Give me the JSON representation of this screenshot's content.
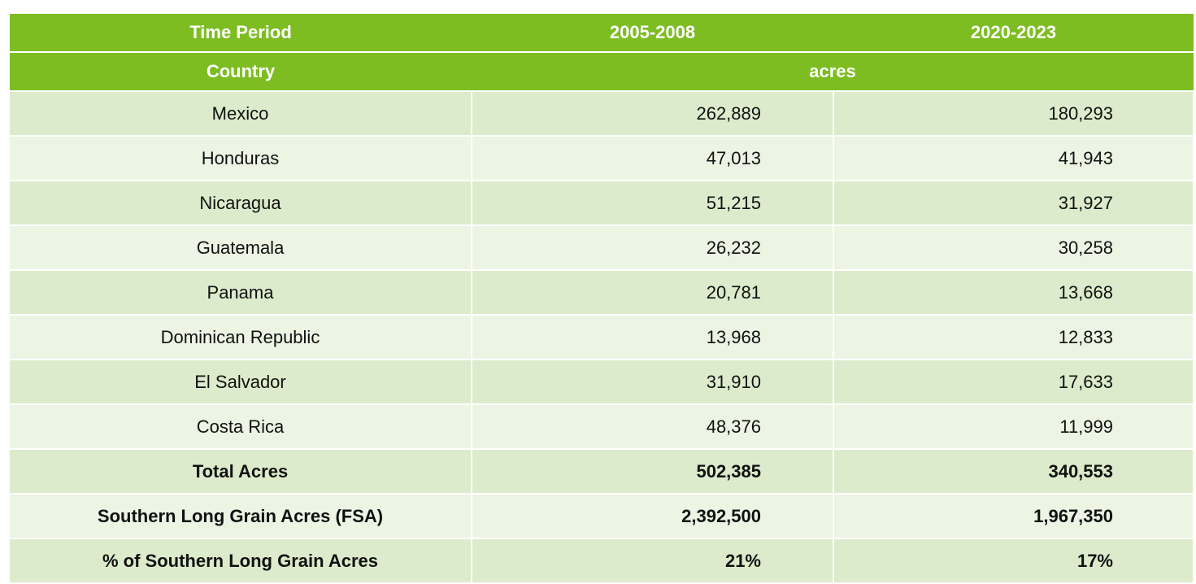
{
  "header": {
    "time_period_label": "Time Period",
    "periods": [
      "2005-2008",
      "2020-2023"
    ],
    "country_label": "Country",
    "unit": "acres"
  },
  "rows": [
    {
      "country": "Mexico",
      "values": [
        "262,889",
        "180,293"
      ]
    },
    {
      "country": "Honduras",
      "values": [
        "47,013",
        "41,943"
      ]
    },
    {
      "country": "Nicaragua",
      "values": [
        "51,215",
        "31,927"
      ]
    },
    {
      "country": "Guatemala",
      "values": [
        "26,232",
        "30,258"
      ]
    },
    {
      "country": "Panama",
      "values": [
        "20,781",
        "13,668"
      ]
    },
    {
      "country": "Dominican Republic",
      "values": [
        "13,968",
        "12,833"
      ]
    },
    {
      "country": "El Salvador",
      "values": [
        "31,910",
        "17,633"
      ]
    },
    {
      "country": "Costa Rica",
      "values": [
        "48,376",
        "11,999"
      ]
    }
  ],
  "summary": [
    {
      "label": "Total Acres",
      "values": [
        "502,385",
        "340,553"
      ]
    },
    {
      "label": "Southern Long Grain Acres (FSA)",
      "values": [
        "2,392,500",
        "1,967,350"
      ]
    },
    {
      "label": "% of Southern Long Grain Acres",
      "values": [
        "21%",
        "17%"
      ]
    }
  ]
}
